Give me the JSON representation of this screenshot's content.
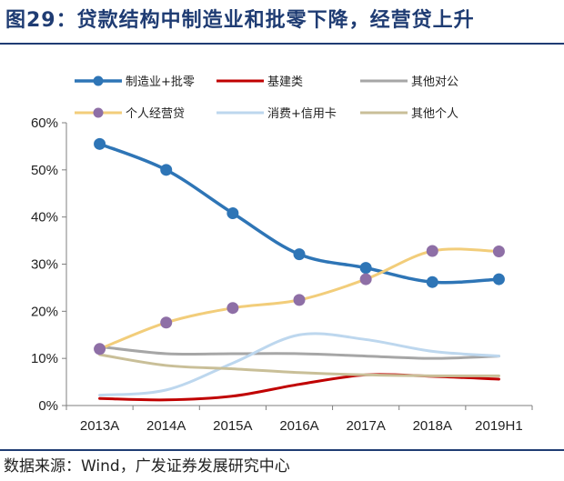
{
  "title": "图29：贷款结构中制造业和批零下降，经营贷上升",
  "source": "数据来源：Wind，广发证券发展研究中心",
  "colors": {
    "brand": "#1f3c73"
  },
  "chart_data": {
    "type": "line",
    "title": "",
    "xlabel": "",
    "ylabel": "",
    "categories": [
      "2013A",
      "2014A",
      "2015A",
      "2016A",
      "2017A",
      "2018A",
      "2019H1"
    ],
    "ylim": [
      0,
      60
    ],
    "yticks": [
      "0%",
      "10%",
      "20%",
      "30%",
      "40%",
      "50%",
      "60%"
    ],
    "yticks_values": [
      0,
      10,
      20,
      30,
      40,
      50,
      60
    ],
    "legend_position": "top",
    "series": [
      {
        "name": "制造业+批零",
        "color": "#2e75b6",
        "width": 3.5,
        "markers": true,
        "marker_color": "#2e75b6",
        "values": [
          55.5,
          50.0,
          40.8,
          32.1,
          29.2,
          26.2,
          26.8
        ]
      },
      {
        "name": "基建类",
        "color": "#c00000",
        "width": 3,
        "markers": false,
        "values": [
          1.5,
          1.2,
          2.0,
          4.5,
          6.5,
          6.2,
          5.6
        ]
      },
      {
        "name": "其他对公",
        "color": "#a6a6a6",
        "width": 3,
        "markers": false,
        "values": [
          12.5,
          11.0,
          11.0,
          11.0,
          10.5,
          10.0,
          10.5
        ]
      },
      {
        "name": "个人经营贷",
        "color": "#f2cd7a",
        "width": 3,
        "markers": true,
        "marker_color": "#8e6fa6",
        "values": [
          12.0,
          17.6,
          20.7,
          22.4,
          26.8,
          32.8,
          32.7
        ]
      },
      {
        "name": "消费+信用卡",
        "color": "#bdd7ee",
        "width": 3,
        "markers": false,
        "values": [
          2.2,
          3.3,
          9.0,
          15.0,
          14.0,
          11.5,
          10.5
        ]
      },
      {
        "name": "其他个人",
        "color": "#c9bf98",
        "width": 3,
        "markers": false,
        "values": [
          10.8,
          8.5,
          7.8,
          7.0,
          6.5,
          6.3,
          6.3
        ]
      }
    ]
  }
}
